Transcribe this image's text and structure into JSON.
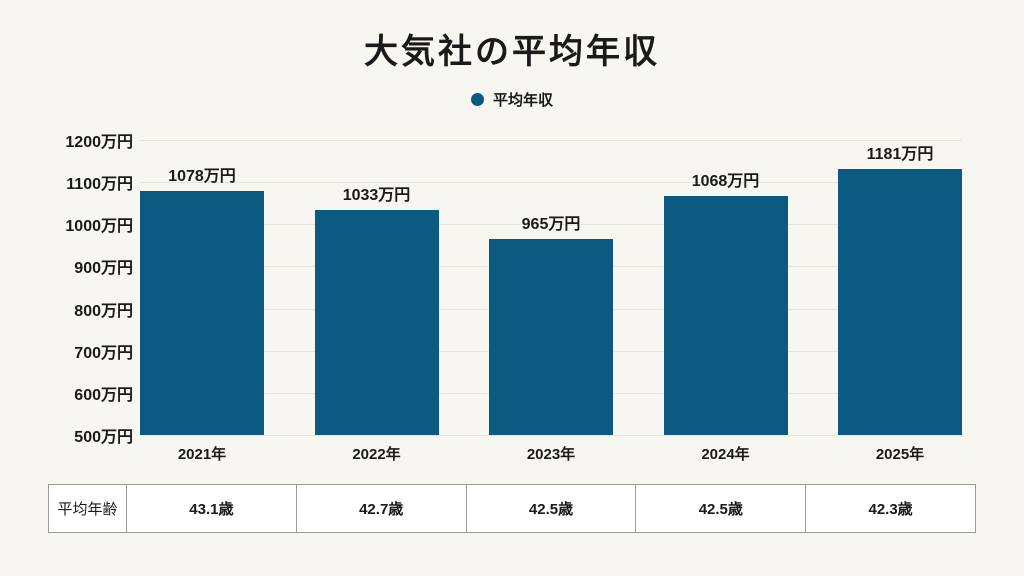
{
  "title": "大気社の平均年収",
  "legend": {
    "label": "平均年収",
    "marker_color": "#0b5a81"
  },
  "chart_data": {
    "type": "bar",
    "title": "大気社の平均年収",
    "categories": [
      "2021年",
      "2022年",
      "2023年",
      "2024年",
      "2025年"
    ],
    "values": [
      1078,
      1033,
      965,
      1068,
      1181
    ],
    "bar_labels": [
      "1078万円",
      "1033万円",
      "965万円",
      "1068万円",
      "1181万円"
    ],
    "xlabel": "",
    "ylabel": "",
    "ylim": [
      500,
      1200
    ],
    "y_ticks": [
      1200,
      1100,
      1000,
      900,
      800,
      700,
      600,
      500
    ],
    "y_tick_labels": [
      "1200万円",
      "1100万円",
      "1000万円",
      "900万円",
      "800万円",
      "700万円",
      "600万円",
      "500万円"
    ],
    "grid": true,
    "legend_position": "top",
    "legend_entries": [
      "平均年収"
    ],
    "bar_color": "#0b5a81"
  },
  "table": {
    "row_label": "平均年齢",
    "values": [
      "43.1歳",
      "42.7歳",
      "42.5歳",
      "42.5歳",
      "42.3歳"
    ]
  },
  "colors": {
    "background": "#f8f6f0",
    "bar": "#0b5a81",
    "gridline": "#e8e5de",
    "text": "#1a1a1a",
    "table_border": "#9a9a9a",
    "table_background": "#ffffff"
  }
}
